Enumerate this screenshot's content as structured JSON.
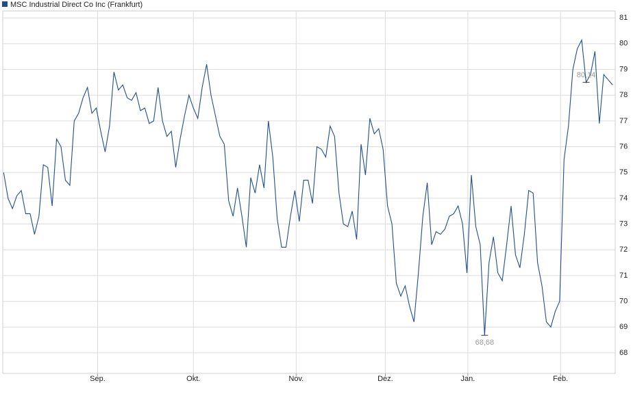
{
  "chart_data": {
    "type": "line",
    "series": [
      {
        "name": "MSC Industrial Direct Co Inc (Frankfurt)",
        "color": "#1f4e8c",
        "values": [
          75.0,
          74.0,
          73.6,
          74.1,
          74.3,
          73.4,
          73.4,
          72.6,
          73.3,
          75.3,
          75.2,
          73.7,
          76.3,
          76.0,
          74.7,
          74.5,
          77.0,
          77.3,
          77.9,
          78.3,
          77.3,
          77.5,
          76.6,
          75.8,
          76.8,
          78.9,
          78.2,
          78.4,
          77.9,
          77.8,
          78.1,
          77.4,
          77.5,
          76.9,
          77.0,
          78.3,
          77.0,
          76.4,
          76.6,
          75.2,
          76.3,
          77.2,
          78.0,
          77.5,
          77.1,
          78.3,
          79.2,
          78.0,
          77.2,
          76.4,
          76.1,
          73.9,
          73.3,
          74.4,
          73.3,
          72.1,
          74.8,
          74.2,
          75.3,
          74.4,
          77.0,
          75.6,
          73.2,
          72.1,
          72.1,
          73.3,
          74.3,
          73.1,
          74.7,
          74.7,
          73.8,
          76.0,
          75.9,
          75.6,
          76.8,
          76.4,
          74.2,
          73.0,
          72.9,
          73.5,
          72.4,
          76.1,
          74.9,
          77.1,
          76.5,
          76.7,
          75.9,
          73.7,
          73.0,
          70.7,
          70.2,
          70.6,
          69.8,
          69.2,
          71.1,
          73.3,
          74.6,
          72.2,
          72.7,
          72.6,
          72.8,
          73.3,
          73.4,
          73.7,
          73.0,
          71.1,
          74.9,
          72.9,
          72.2,
          68.68,
          71.5,
          72.5,
          71.1,
          70.8,
          72.2,
          73.7,
          71.8,
          71.3,
          72.6,
          74.3,
          74.2,
          71.5,
          70.6,
          69.2,
          69.0,
          69.6,
          70.0,
          75.5,
          76.8,
          79.0,
          79.8,
          80.14,
          78.5,
          78.8,
          79.7,
          76.9,
          78.8,
          78.6,
          78.4
        ]
      }
    ],
    "xlim": [
      -0.2,
      138.6
    ],
    "xticks": [
      {
        "value": 21.3,
        "label": "Sep."
      },
      {
        "value": 43.0,
        "label": "Okt."
      },
      {
        "value": 66.3,
        "label": "Nov."
      },
      {
        "value": 86.5,
        "label": "Dez."
      },
      {
        "value": 105.2,
        "label": "Jan."
      },
      {
        "value": 126.2,
        "label": "Feb."
      }
    ],
    "ylim": [
      67.2,
      81.27
    ],
    "yticks": [
      68,
      69,
      70,
      71,
      72,
      73,
      74,
      75,
      76,
      77,
      78,
      79,
      80,
      81
    ],
    "grid": true,
    "annotations": [
      {
        "text": "80,14",
        "x": 132,
        "position": "above"
      },
      {
        "text": "68,68",
        "x": 109,
        "position": "below"
      }
    ]
  }
}
